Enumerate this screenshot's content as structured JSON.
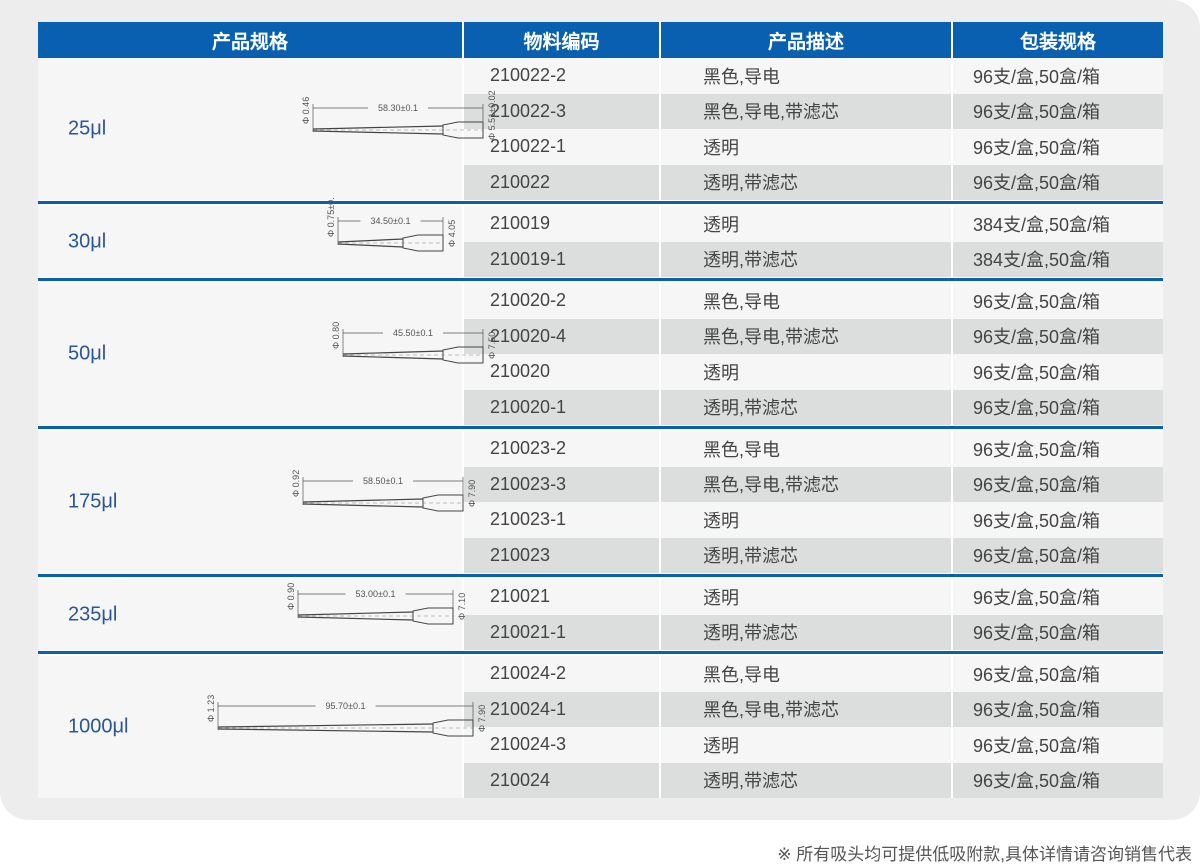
{
  "header": {
    "spec": "产品规格",
    "code": "物料编码",
    "desc": "产品描述",
    "pack": "包装规格"
  },
  "colors": {
    "header_blue": "#0a60b0",
    "spec_text": "#2a5597",
    "shade": "#dcdddd"
  },
  "groups": [
    {
      "spec": "25μl",
      "dims": {
        "tip": "Φ 0.46",
        "length": "58.30±0.1",
        "end": "Φ 5.51±0.02"
      },
      "rows": [
        {
          "code": "210022-2",
          "desc": "黑色,导电",
          "pack": "96支/盒,50盒/箱"
        },
        {
          "code": "210022-3",
          "desc": "黑色,导电,带滤芯",
          "pack": "96支/盒,50盒/箱"
        },
        {
          "code": "210022-1",
          "desc": "透明",
          "pack": "96支/盒,50盒/箱"
        },
        {
          "code": "210022",
          "desc": "透明,带滤芯",
          "pack": "96支/盒,50盒/箱"
        }
      ]
    },
    {
      "spec": "30μl",
      "dims": {
        "tip": "Φ 0.75±0.05",
        "length": "34.50±0.1",
        "end": "Φ 4.05"
      },
      "rows": [
        {
          "code": "210019",
          "desc": "透明",
          "pack": "384支/盒,50盒/箱"
        },
        {
          "code": "210019-1",
          "desc": "透明,带滤芯",
          "pack": "384支/盒,50盒/箱"
        }
      ]
    },
    {
      "spec": "50μl",
      "dims": {
        "tip": "Φ 0.80",
        "length": "45.50±0.1",
        "end": "Φ 7.50"
      },
      "rows": [
        {
          "code": "210020-2",
          "desc": "黑色,导电",
          "pack": "96支/盒,50盒/箱"
        },
        {
          "code": "210020-4",
          "desc": "黑色,导电,带滤芯",
          "pack": "96支/盒,50盒/箱"
        },
        {
          "code": "210020",
          "desc": "透明",
          "pack": "96支/盒,50盒/箱"
        },
        {
          "code": "210020-1",
          "desc": "透明,带滤芯",
          "pack": "96支/盒,50盒/箱"
        }
      ]
    },
    {
      "spec": "175μl",
      "dims": {
        "tip": "Φ 0.92",
        "length": "58.50±0.1",
        "end": "Φ 7.90"
      },
      "rows": [
        {
          "code": "210023-2",
          "desc": "黑色,导电",
          "pack": "96支/盒,50盒/箱"
        },
        {
          "code": "210023-3",
          "desc": "黑色,导电,带滤芯",
          "pack": "96支/盒,50盒/箱"
        },
        {
          "code": "210023-1",
          "desc": "透明",
          "pack": "96支/盒,50盒/箱"
        },
        {
          "code": "210023",
          "desc": "透明,带滤芯",
          "pack": "96支/盒,50盒/箱"
        }
      ]
    },
    {
      "spec": "235μl",
      "dims": {
        "tip": "Φ 0.90",
        "length": "53.00±0.1",
        "end": "Φ 7.10"
      },
      "rows": [
        {
          "code": "210021",
          "desc": "透明",
          "pack": "96支/盒,50盒/箱"
        },
        {
          "code": "210021-1",
          "desc": "透明,带滤芯",
          "pack": "96支/盒,50盒/箱"
        }
      ]
    },
    {
      "spec": "1000μl",
      "dims": {
        "tip": "Φ 1.23",
        "length": "95.70±0.1",
        "end": "Φ 7.90"
      },
      "rows": [
        {
          "code": "210024-2",
          "desc": "黑色,导电",
          "pack": "96支/盒,50盒/箱"
        },
        {
          "code": "210024-1",
          "desc": "黑色,导电,带滤芯",
          "pack": "96支/盒,50盒/箱"
        },
        {
          "code": "210024-3",
          "desc": "透明",
          "pack": "96支/盒,50盒/箱"
        },
        {
          "code": "210024",
          "desc": "透明,带滤芯",
          "pack": "96支/盒,50盒/箱"
        }
      ]
    }
  ],
  "footnote": "※  所有吸头均可提供低吸附款,具体详情请咨询销售代表"
}
